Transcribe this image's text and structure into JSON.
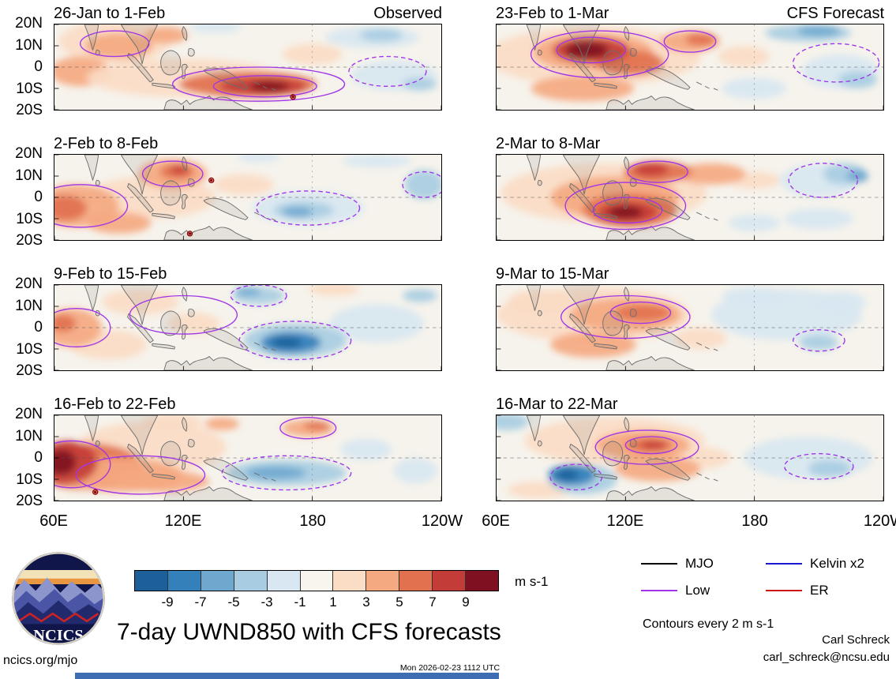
{
  "meta": {
    "site": "ncics.org/mjo",
    "timestamp": "Mon 2026-02-23 1112 UTC",
    "credit_name": "Carl Schreck",
    "credit_email": "carl_schreck@ncsu.edu",
    "logo_text": "NCICS"
  },
  "chart_data": {
    "type": "heatmap",
    "title": "7-day UWND850 with CFS forecasts",
    "variable": "850-hPa zonal wind anomaly, 7-day means, observed and CFS forecast",
    "unit_label": "m s-1",
    "contour_note": "Contours every 2 m s-1",
    "column_labels": [
      "Observed",
      "CFS Forecast"
    ],
    "x_ticks": [
      "60E",
      "120E",
      "180",
      "120W"
    ],
    "y_ticks": [
      "20N",
      "10N",
      "0",
      "10S",
      "20S"
    ],
    "x_range_deg_east": [
      60,
      240
    ],
    "y_range_deg_north": [
      20,
      -20
    ],
    "grid": "dashed equator and dateline reference lines",
    "background": "#f6f3ec",
    "contour_color": "#a035e8",
    "marker_color": "#8b0000",
    "palette": {
      "O1": "#fbdcc5",
      "O2": "#f5a981",
      "O3": "#e2714f",
      "R1": "#c43c37",
      "R2": "#7e1021",
      "B1": "#d8e7f1",
      "B2": "#a8cde2",
      "B3": "#6fa8cf",
      "B4": "#3380bb",
      "B5": "#1c5f99"
    },
    "colorbar": {
      "boundaries": [
        -9,
        -7,
        -5,
        -3,
        -1,
        1,
        3,
        5,
        7,
        9
      ],
      "colors": [
        "#1c5f99",
        "#3380bb",
        "#6fa8cf",
        "#a8cde2",
        "#d8e7f1",
        "#f8f5ef",
        "#fbdcc5",
        "#f5a981",
        "#e2714f",
        "#c43c37",
        "#7e1021"
      ],
      "unit": "m s-1"
    },
    "legend": [
      {
        "label": "MJO",
        "color": "#000000"
      },
      {
        "label": "Kelvin x2",
        "color": "#1818cc"
      },
      {
        "label": "Low",
        "color": "#a035e8"
      },
      {
        "label": "ER",
        "color": "#cc1515"
      }
    ],
    "coastlines": [
      "M14,0 L15.5,4 L17,9 L17.8,12 L19,8 L20,3 L20.5,0 Z",
      "M19.6,12 C20.8,11.8 21.4,13 20.8,14 C20.2,14.8 19.2,14.4 19.2,13.2 Z",
      "M31,0 C33,4 36,7 38.5,11 L40,15 L40.8,18.5 L41.6,15 C43,10 45.5,5 48,0 Z",
      "M34.5,13.5 L37.5,15.5 L43,22 L46,26 L44.5,27 L38,19.5 L34,15 Z",
      "M45.5,27.5 L53,28.2 L56,29 L55.8,30 L48,29 L45.5,28.5 Z",
      "M49.5,17 C50,13.5 53,11.5 55.5,12.5 C58.5,13.8 59.5,17.5 58,21 C56.8,23.8 53,24.5 51,22.5 C49.8,21 49.3,19 49.5,17 Z",
      "M59.5,19 C61.5,18 62.5,19.5 61,21 C60,22 61.5,23.5 60.5,25 C59.8,26 59,25 59.5,23.5 C60,22.5 59,21 59.5,19 Z",
      "M60,1 C61.5,2.5 62,5 61.3,7.5 L60,6 L59.3,3 Z",
      "M62.5,11.5 C64,10.8 65.5,12 65,13.8 C64.5,15.2 62.8,15.2 62.2,13.8 Z",
      "M69.5,21.5 C73,19.5 78,20.5 82,23 C85,25 88,27.5 90,29.5 L89,30.5 C85,29.5 79,27 74.5,24.5 C72,23.2 70,22.5 69.5,21.5 Z",
      "M51,40 L52,36.5 C54,34.5 57,35.5 59,37.5 L61.5,35.5 L63,37.5 C66,34.5 70,35.5 72,33.5 L74,35.5 C77,33 81,34 84,36.5 L88,38.5 L92,40 Z",
      "M93,27 l2.5,1.2 M97,29 l2,1 M101,30 l2,0.8"
    ],
    "panels": [
      {
        "title": "26-Jan to 1-Feb",
        "corner_label": "Observed",
        "blobs": [
          [
            28,
            8,
            26,
            10,
            "O1"
          ],
          [
            30,
            10,
            16,
            6,
            "O2"
          ],
          [
            12,
            22,
            14,
            7,
            "O2"
          ],
          [
            60,
            25,
            45,
            9,
            "O1"
          ],
          [
            120,
            14,
            14,
            5,
            "O1"
          ],
          [
            90,
            28,
            32,
            6,
            "O3"
          ],
          [
            97,
            29,
            20,
            4,
            "R1"
          ],
          [
            100,
            29,
            9,
            2.5,
            "R2"
          ],
          [
            52,
            5,
            10,
            4,
            "O2"
          ],
          [
            148,
            6,
            22,
            5,
            "B1"
          ],
          [
            152,
            5,
            10,
            3,
            "B2"
          ],
          [
            158,
            24,
            20,
            7,
            "B1"
          ],
          [
            170,
            28,
            8,
            3,
            "B2"
          ],
          [
            75,
            1,
            12,
            3,
            "B1"
          ]
        ],
        "contours": [
          [
            95,
            28,
            40,
            8,
            0
          ],
          [
            98,
            29,
            24,
            5,
            0
          ],
          [
            28,
            9,
            16,
            6,
            0
          ],
          [
            155,
            22,
            18,
            7,
            1
          ]
        ],
        "markers": [
          [
            111,
            34
          ]
        ]
      },
      {
        "title": "2-Feb to 8-Feb",
        "blobs": [
          [
            45,
            20,
            30,
            10,
            "O1"
          ],
          [
            10,
            24,
            20,
            10,
            "O2"
          ],
          [
            5,
            25,
            10,
            6,
            "O3"
          ],
          [
            30,
            32,
            15,
            5,
            "O2"
          ],
          [
            55,
            9,
            16,
            7,
            "O2"
          ],
          [
            57,
            8,
            8,
            3.5,
            "O3"
          ],
          [
            58,
            7,
            4,
            2,
            "R1"
          ],
          [
            88,
            14,
            14,
            5,
            "O1"
          ],
          [
            118,
            25,
            26,
            8,
            "B1"
          ],
          [
            116,
            26,
            14,
            4,
            "B2"
          ],
          [
            113,
            27,
            7,
            2.5,
            "B3"
          ],
          [
            150,
            3,
            16,
            3,
            "B1"
          ],
          [
            172,
            14,
            9,
            7,
            "B2"
          ],
          [
            95,
            1,
            10,
            2.5,
            "B1"
          ]
        ],
        "contours": [
          [
            12,
            24,
            22,
            10,
            0
          ],
          [
            55,
            9,
            14,
            6,
            0
          ],
          [
            118,
            25,
            24,
            8,
            1
          ],
          [
            172,
            14,
            10,
            6,
            1
          ]
        ],
        "markers": [
          [
            73,
            12
          ],
          [
            63,
            37
          ]
        ]
      },
      {
        "title": "9-Feb to 15-Feb",
        "blobs": [
          [
            25,
            28,
            18,
            7,
            "O1"
          ],
          [
            40,
            8,
            18,
            6,
            "O1"
          ],
          [
            65,
            18,
            12,
            5,
            "O1"
          ],
          [
            130,
            2,
            12,
            3,
            "O1"
          ],
          [
            8,
            20,
            14,
            9,
            "O2"
          ],
          [
            4,
            18,
            6,
            4,
            "O3"
          ],
          [
            150,
            18,
            22,
            9,
            "B1"
          ],
          [
            95,
            5,
            12,
            4,
            "B2"
          ],
          [
            90,
            3,
            6,
            2,
            "B3"
          ],
          [
            112,
            26,
            24,
            8,
            "B2"
          ],
          [
            110,
            27,
            14,
            5,
            "B4"
          ],
          [
            108,
            27,
            7,
            2.5,
            "B5"
          ],
          [
            170,
            5,
            8,
            3,
            "B2"
          ]
        ],
        "contours": [
          [
            10,
            20,
            16,
            9,
            0
          ],
          [
            60,
            14,
            25,
            9,
            0
          ],
          [
            112,
            26,
            26,
            9,
            1
          ],
          [
            95,
            5,
            13,
            5,
            1
          ]
        ],
        "markers": []
      },
      {
        "title": "16-Feb to 22-Feb",
        "blobs": [
          [
            45,
            15,
            35,
            12,
            "O1"
          ],
          [
            55,
            3,
            14,
            4,
            "O1"
          ],
          [
            15,
            24,
            26,
            11,
            "O3"
          ],
          [
            30,
            28,
            30,
            8,
            "O2"
          ],
          [
            50,
            31,
            22,
            5,
            "O2"
          ],
          [
            6,
            22,
            14,
            10,
            "R1"
          ],
          [
            3,
            22,
            7,
            6,
            "R2"
          ],
          [
            78,
            4,
            8,
            3,
            "O2"
          ],
          [
            118,
            6,
            12,
            4,
            "O2"
          ],
          [
            122,
            5,
            6,
            2,
            "O3"
          ],
          [
            145,
            16,
            12,
            5,
            "B1"
          ],
          [
            108,
            27,
            28,
            6,
            "B2"
          ],
          [
            103,
            27,
            14,
            3,
            "B3"
          ],
          [
            168,
            26,
            10,
            6,
            "B1"
          ]
        ],
        "contours": [
          [
            8,
            23,
            18,
            11,
            0
          ],
          [
            40,
            28,
            30,
            9,
            0
          ],
          [
            118,
            6,
            13,
            5,
            0
          ],
          [
            108,
            27,
            30,
            8,
            1
          ]
        ],
        "markers": [
          [
            19,
            36
          ]
        ]
      },
      {
        "title": "23-Feb to 1-Mar",
        "corner_label": "CFS Forecast",
        "blobs": [
          [
            45,
            15,
            50,
            14,
            "O1"
          ],
          [
            115,
            15,
            12,
            5,
            "O1"
          ],
          [
            45,
            13,
            28,
            9,
            "O2"
          ],
          [
            40,
            30,
            24,
            6,
            "O2"
          ],
          [
            62,
            18,
            16,
            6,
            "O3"
          ],
          [
            44,
            12,
            18,
            6,
            "R1"
          ],
          [
            42,
            12,
            10,
            4,
            "R2"
          ],
          [
            90,
            8,
            14,
            5,
            "O2"
          ],
          [
            95,
            7,
            7,
            3,
            "O3"
          ],
          [
            145,
            4,
            20,
            4,
            "B2"
          ],
          [
            150,
            3,
            10,
            2.5,
            "B3"
          ],
          [
            160,
            22,
            18,
            8,
            "B1"
          ],
          [
            168,
            26,
            9,
            4,
            "B2"
          ],
          [
            120,
            30,
            15,
            5,
            "B1"
          ]
        ],
        "contours": [
          [
            48,
            14,
            32,
            11,
            0
          ],
          [
            44,
            12,
            16,
            6,
            0
          ],
          [
            90,
            8,
            12,
            5,
            0
          ],
          [
            158,
            18,
            20,
            9,
            1
          ]
        ],
        "markers": []
      },
      {
        "title": "2-Mar to 8-Mar",
        "blobs": [
          [
            50,
            18,
            48,
            14,
            "O1"
          ],
          [
            120,
            12,
            12,
            4,
            "O1"
          ],
          [
            55,
            20,
            30,
            10,
            "O2"
          ],
          [
            100,
            9,
            16,
            5,
            "O2"
          ],
          [
            62,
            26,
            22,
            8,
            "O3"
          ],
          [
            75,
            8,
            16,
            5,
            "O3"
          ],
          [
            72,
            7,
            8,
            3,
            "R1"
          ],
          [
            61,
            27,
            14,
            5,
            "R1"
          ],
          [
            60,
            27,
            8,
            3,
            "R2"
          ],
          [
            150,
            12,
            18,
            8,
            "B1"
          ],
          [
            162,
            9,
            10,
            5,
            "B2"
          ],
          [
            168,
            10,
            5,
            3,
            "B3"
          ],
          [
            150,
            30,
            16,
            5,
            "B1"
          ],
          [
            120,
            32,
            12,
            4,
            "B1"
          ]
        ],
        "contours": [
          [
            60,
            24,
            28,
            11,
            0
          ],
          [
            61,
            26,
            16,
            6,
            0
          ],
          [
            75,
            8,
            14,
            5,
            0
          ],
          [
            152,
            12,
            16,
            8,
            1
          ]
        ],
        "markers": []
      },
      {
        "title": "9-Mar to 15-Mar",
        "blobs": [
          [
            45,
            14,
            45,
            13,
            "O1"
          ],
          [
            20,
            8,
            15,
            6,
            "O1"
          ],
          [
            95,
            25,
            12,
            5,
            "O1"
          ],
          [
            60,
            14,
            26,
            8,
            "O2"
          ],
          [
            45,
            28,
            20,
            6,
            "O2"
          ],
          [
            68,
            13,
            13,
            4,
            "O3"
          ],
          [
            135,
            14,
            35,
            12,
            "B1"
          ],
          [
            160,
            8,
            12,
            5,
            "B1"
          ],
          [
            120,
            5,
            15,
            4,
            "B1"
          ],
          [
            150,
            27,
            9,
            3.5,
            "B2"
          ]
        ],
        "contours": [
          [
            60,
            15,
            30,
            10,
            0
          ],
          [
            67,
            13,
            14,
            5,
            0
          ],
          [
            150,
            26,
            12,
            5,
            1
          ]
        ],
        "markers": []
      },
      {
        "title": "16-Mar to 22-Mar",
        "blobs": [
          [
            55,
            12,
            42,
            11,
            "O1"
          ],
          [
            20,
            35,
            15,
            4,
            "O1"
          ],
          [
            95,
            20,
            14,
            5,
            "O1"
          ],
          [
            68,
            14,
            22,
            7,
            "O2"
          ],
          [
            75,
            25,
            20,
            6,
            "O2"
          ],
          [
            71,
            14,
            11,
            3.5,
            "O3"
          ],
          [
            73,
            14,
            6,
            2,
            "R1"
          ],
          [
            40,
            30,
            16,
            7,
            "B2"
          ],
          [
            35,
            28,
            11,
            5,
            "B4"
          ],
          [
            33,
            28,
            5,
            2.5,
            "B5"
          ],
          [
            145,
            20,
            30,
            10,
            "B1"
          ],
          [
            155,
            25,
            10,
            4,
            "B2"
          ],
          [
            5,
            3,
            10,
            4,
            "B2"
          ]
        ],
        "contours": [
          [
            70,
            15,
            24,
            8,
            0
          ],
          [
            72,
            14,
            12,
            4,
            0
          ],
          [
            150,
            24,
            16,
            6,
            1
          ],
          [
            37,
            29,
            12,
            6,
            1
          ]
        ],
        "markers": []
      }
    ]
  }
}
